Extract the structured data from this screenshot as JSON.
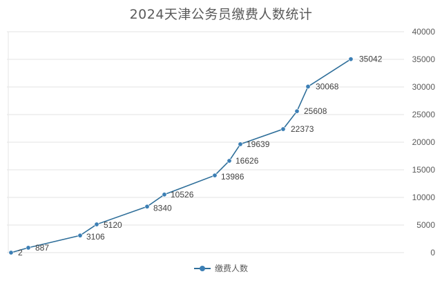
{
  "chart_data": {
    "type": "line",
    "title": "2024天津公务员缴费人数统计",
    "xlabel": "",
    "ylabel": "",
    "ylim": [
      0,
      40000
    ],
    "yticks": [
      0,
      5000,
      10000,
      15000,
      20000,
      25000,
      30000,
      35000,
      40000
    ],
    "y_axis_position": "right",
    "grid": true,
    "legend": "bottom",
    "series": [
      {
        "name": "缴费人数",
        "color": "#2f6f9a",
        "marker_color": "#3c7fb5",
        "values": [
          2,
          887,
          3106,
          5120,
          8340,
          10526,
          13986,
          16626,
          19639,
          22373,
          25608,
          30068,
          35042
        ]
      }
    ]
  }
}
